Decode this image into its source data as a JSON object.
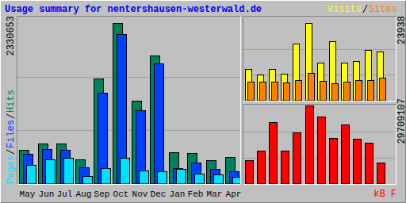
{
  "chart_data": [
    {
      "type": "bar",
      "title": "Usage summary for nentershausen-westerwald.de",
      "categories": [
        "May",
        "Jun",
        "Jul",
        "Aug",
        "Sep",
        "Oct",
        "Nov",
        "Dec",
        "Jan",
        "Feb",
        "Mar",
        "Apr"
      ],
      "series": [
        {
          "name": "Hits",
          "color": "#00805c",
          "values": [
            493000,
            586000,
            586000,
            356000,
            1527000,
            2330653,
            1205000,
            1860000,
            459000,
            448000,
            344000,
            390000
          ]
        },
        {
          "name": "Files",
          "color": "#0040ff",
          "values": [
            436000,
            505000,
            494000,
            241000,
            1320000,
            2170000,
            1068000,
            1745000,
            230000,
            310000,
            218000,
            184000
          ]
        },
        {
          "name": "Pages",
          "color": "#00e0ff",
          "values": [
            276000,
            356000,
            379000,
            115000,
            230000,
            379000,
            195000,
            184000,
            218000,
            149000,
            138000,
            103000
          ]
        }
      ],
      "ylim": [
        0,
        2330653
      ],
      "yticks": [
        2330653
      ],
      "grid": true
    },
    {
      "type": "bar",
      "series": [
        {
          "name": "Visits",
          "color": "#ffff00",
          "values": [
            9771,
            8061,
            9771,
            8305,
            17587,
            23938,
            11725,
            18320,
            11725,
            12213,
            15633,
            15145
          ]
        },
        {
          "name": "Sites",
          "color": "#ff8000",
          "values": [
            5862,
            5862,
            5862,
            5618,
            6351,
            8549,
            6107,
            5374,
            5862,
            6351,
            6351,
            7084
          ]
        }
      ],
      "ylim": [
        0,
        23938
      ],
      "yticks": [
        23938
      ],
      "grid": true,
      "tick_labels": "y"
    },
    {
      "type": "bar",
      "series": [
        {
          "name": "kB F",
          "color": "#ff0000",
          "values": [
            9003000,
            12604000,
            23407000,
            12604000,
            19506000,
            29709107,
            25508000,
            17405000,
            22507000,
            17105000,
            15605000,
            8102000
          ]
        }
      ],
      "ylim": [
        0,
        29709107
      ],
      "yticks": [
        29709107
      ],
      "grid": true,
      "tick_labels": "y"
    }
  ]
}
